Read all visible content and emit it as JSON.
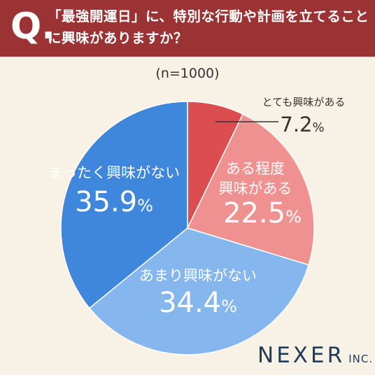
{
  "header": {
    "q_mark": "Q.",
    "question": "「最強開運日」に、特別な行動や計画を立てることに興味がありますか？"
  },
  "sample_label": "(n=1000)",
  "brand": {
    "name": "NEXER",
    "suffix": "INC."
  },
  "colors": {
    "header_bg": "#9b3334",
    "background": "#f8f1e6",
    "very_interested": "#dc4d4f",
    "somewhat_interested": "#ef9190",
    "not_very_interested": "#85b6ee",
    "not_interested": "#3e87dd"
  },
  "chart_data": {
    "type": "pie",
    "title": "「最強開運日」に、特別な行動や計画を立てることに興味がありますか？",
    "subtitle": "(n=1000)",
    "unit": "%",
    "slices": [
      {
        "label": "とても興味がある",
        "value": 7.2,
        "value_text": "7.2",
        "color": "#dc4d4f"
      },
      {
        "label": "ある程度興味がある",
        "value": 22.5,
        "value_text": "22.5",
        "color": "#ef9190"
      },
      {
        "label": "あまり興味がない",
        "value": 34.4,
        "value_text": "34.4",
        "color": "#85b6ee"
      },
      {
        "label": "まったく興味がない",
        "value": 35.9,
        "value_text": "35.9",
        "color": "#3e87dd"
      }
    ]
  }
}
